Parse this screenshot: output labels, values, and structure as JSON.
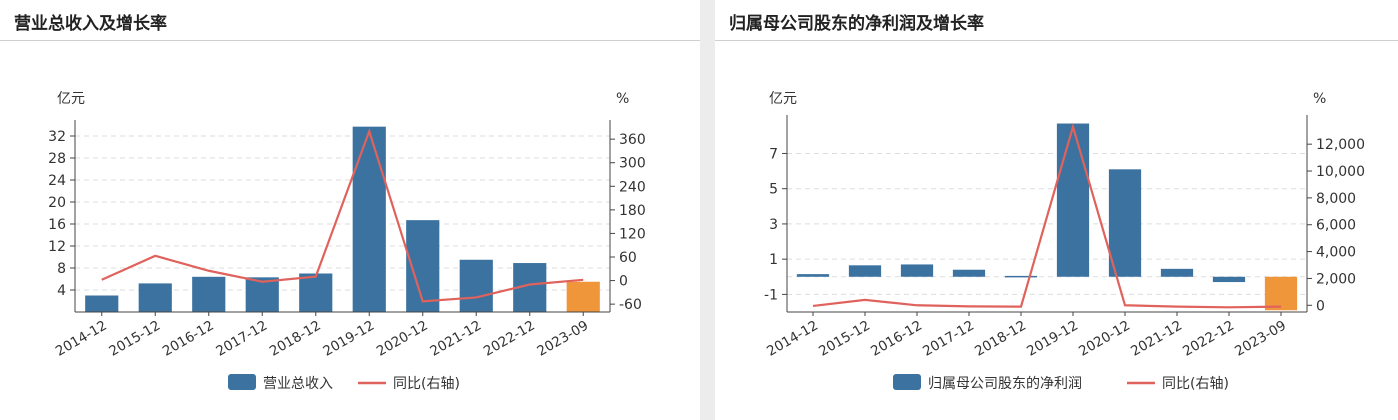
{
  "panels": [
    {
      "title": "营业总收入及增长率"
    },
    {
      "title": "归属母公司股东的净利润及增长率"
    }
  ],
  "colors": {
    "bar": "#3b72a0",
    "bar_highlight": "#f0963a",
    "line": "#e0625c",
    "grid": "#dddddd",
    "axis": "#444444"
  },
  "chart_data": [
    {
      "type": "bar",
      "title": "营业总收入及增长率",
      "categories": [
        "2014-12",
        "2015-12",
        "2016-12",
        "2017-12",
        "2018-12",
        "2019-12",
        "2020-12",
        "2021-12",
        "2022-12",
        "2023-09"
      ],
      "highlight_index": 9,
      "ylabel": "亿元",
      "y2label": "%",
      "ylim": [
        0,
        34
      ],
      "y_ticks": [
        4,
        8,
        12,
        16,
        20,
        24,
        28,
        32
      ],
      "y2lim": [
        -80,
        396
      ],
      "y2_ticks": [
        -60,
        0,
        60,
        120,
        180,
        240,
        300,
        360
      ],
      "series": [
        {
          "name": "营业总收入",
          "kind": "bar",
          "axis": "left",
          "values": [
            3.0,
            5.2,
            6.4,
            6.3,
            7.0,
            33.7,
            16.7,
            9.5,
            8.9,
            5.5
          ]
        },
        {
          "name": "同比(右轴)",
          "kind": "line",
          "axis": "right",
          "values": [
            2,
            63,
            25,
            -3,
            10,
            380,
            -53,
            -43,
            -10,
            2
          ]
        }
      ],
      "legend": "bottom-center",
      "grid": true
    },
    {
      "type": "bar",
      "title": "归属母公司股东的净利润及增长率",
      "categories": [
        "2014-12",
        "2015-12",
        "2016-12",
        "2017-12",
        "2018-12",
        "2019-12",
        "2020-12",
        "2021-12",
        "2022-12",
        "2023-09"
      ],
      "highlight_index": 9,
      "ylabel": "亿元",
      "y2label": "%",
      "ylim": [
        -2,
        8.9
      ],
      "y_ticks": [
        -1,
        1,
        3,
        5,
        7
      ],
      "y2lim": [
        -500,
        13800
      ],
      "y2_ticks": [
        0,
        2000,
        4000,
        6000,
        8000,
        10000,
        12000
      ],
      "series": [
        {
          "name": "归属母公司股东的净利润",
          "kind": "bar",
          "axis": "left",
          "values": [
            0.15,
            0.65,
            0.7,
            0.4,
            0.05,
            8.7,
            6.1,
            0.45,
            -0.3,
            -1.9
          ]
        },
        {
          "name": "同比(右轴)",
          "kind": "line",
          "axis": "right",
          "values": [
            -50,
            400,
            0,
            -80,
            -100,
            13300,
            0,
            -100,
            -150,
            -100
          ]
        }
      ],
      "legend": "bottom-center",
      "grid": true
    }
  ]
}
